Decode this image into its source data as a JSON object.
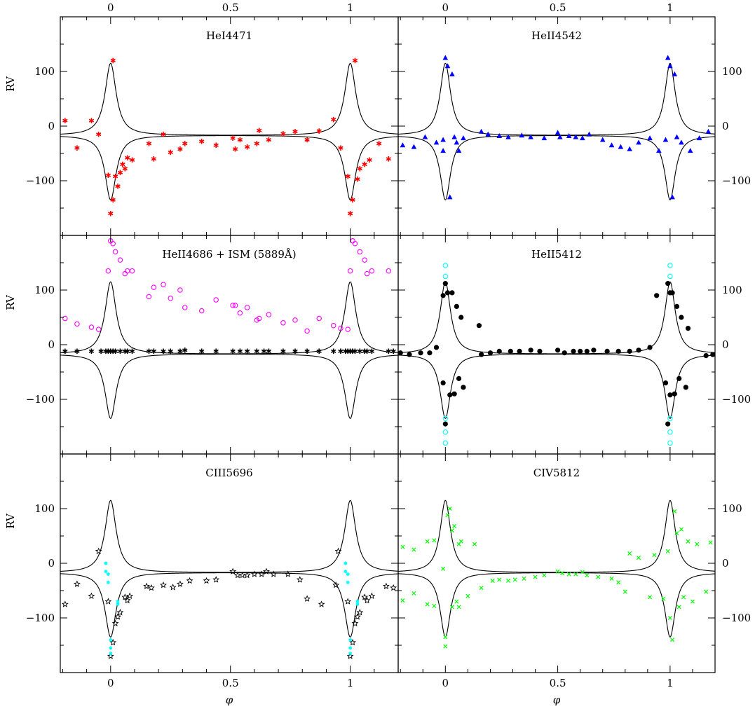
{
  "figure": {
    "xlabel": "φ",
    "ylabel": "RV",
    "x_ticks": [
      "0",
      "0.5",
      "1"
    ],
    "y_ticks": [
      "100",
      "0",
      "−100"
    ]
  },
  "chart_data": [
    {
      "type": "scatter",
      "title": "HeI4471",
      "xlabel": "",
      "ylabel": "RV",
      "xlim": [
        -0.21,
        1.2
      ],
      "ylim": [
        -200,
        200
      ],
      "grid": false,
      "markers": {
        "data": "asterisk"
      },
      "colors": {
        "data": "#ff0000"
      },
      "series": [
        {
          "name": "",
          "x": [
            -0.19,
            -0.14,
            -0.08,
            -0.05,
            -0.01,
            0.0,
            0.01,
            0.01,
            0.02,
            0.03,
            0.04,
            0.05,
            0.06,
            0.07,
            0.09,
            0.16,
            0.18,
            0.22,
            0.25,
            0.29,
            0.31,
            0.38,
            0.44,
            0.51,
            0.52,
            0.54,
            0.57,
            0.61,
            0.62,
            0.66,
            0.72,
            0.77,
            0.82,
            0.87,
            0.93,
            0.96,
            0.99,
            1.0,
            1.01,
            1.02,
            1.03,
            1.04,
            1.06,
            1.08,
            1.12,
            1.16
          ],
          "y": [
            10,
            -40,
            10,
            -15,
            -90,
            -160,
            -135,
            120,
            -92,
            -110,
            -85,
            -70,
            -78,
            -58,
            -62,
            -32,
            -60,
            -15,
            -48,
            -42,
            -32,
            -28,
            -35,
            -22,
            -42,
            -25,
            -38,
            -32,
            -8,
            -25,
            -14,
            -10,
            -25,
            -9,
            12,
            -40,
            -92,
            -160,
            -135,
            120,
            -97,
            -78,
            -70,
            -62,
            -32,
            -60
          ]
        }
      ],
      "model_curves": {
        "period": 1.0,
        "peak": 115,
        "trough": -135,
        "baseline": -17
      }
    },
    {
      "type": "scatter",
      "title": "HeII4542",
      "xlabel": "",
      "ylabel": "RV",
      "xlim": [
        -0.21,
        1.2
      ],
      "ylim": [
        -200,
        200
      ],
      "grid": false,
      "markers": {
        "data": "triangle"
      },
      "colors": {
        "data": "#0000ff"
      },
      "series": [
        {
          "name": "",
          "x": [
            -0.19,
            -0.14,
            -0.09,
            -0.04,
            -0.01,
            -0.01,
            0.0,
            0.01,
            0.02,
            0.03,
            0.04,
            0.05,
            0.06,
            0.08,
            0.16,
            0.19,
            0.24,
            0.28,
            0.34,
            0.38,
            0.44,
            0.5,
            0.51,
            0.55,
            0.58,
            0.61,
            0.64,
            0.7,
            0.74,
            0.78,
            0.82,
            0.86,
            0.91,
            0.95,
            0.98,
            0.99,
            1.0,
            1.01,
            1.02,
            1.03,
            1.05,
            1.09,
            1.13,
            1.17
          ],
          "y": [
            -35,
            -38,
            -20,
            -30,
            -45,
            -25,
            125,
            110,
            -130,
            95,
            -20,
            -30,
            -45,
            -22,
            -10,
            -15,
            -18,
            -20,
            -17,
            -20,
            -22,
            -12,
            -20,
            -18,
            -20,
            -22,
            -15,
            -25,
            -35,
            -38,
            -42,
            -30,
            -22,
            -45,
            -25,
            125,
            110,
            -130,
            95,
            -20,
            -30,
            -45,
            -22,
            -10
          ]
        }
      ],
      "model_curves": {
        "period": 1.0,
        "peak": 115,
        "trough": -135,
        "baseline": -17
      }
    },
    {
      "type": "scatter",
      "title": "HeII4686 + ISM (5889Å)",
      "xlabel": "",
      "ylabel": "RV",
      "xlim": [
        -0.21,
        1.2
      ],
      "ylim": [
        -200,
        200
      ],
      "grid": false,
      "markers": {
        "HeII4686": "open-circle",
        "ISM": "asterisk"
      },
      "colors": {
        "HeII4686": "#ff00ff",
        "ISM": "#000000"
      },
      "series": [
        {
          "name": "",
          "x": [
            -0.19,
            -0.14,
            -0.08,
            -0.05,
            -0.01,
            0.0,
            0.01,
            0.02,
            0.04,
            0.06,
            0.07,
            0.09,
            0.16,
            0.18,
            0.22,
            0.25,
            0.29,
            0.31,
            0.38,
            0.44,
            0.51,
            0.52,
            0.54,
            0.57,
            0.61,
            0.62,
            0.66,
            0.72,
            0.77,
            0.82,
            0.87,
            0.93,
            0.96,
            0.99,
            1.0,
            1.01,
            1.02,
            1.04,
            1.06,
            1.07,
            1.09,
            1.16
          ],
          "y": [
            48,
            38,
            32,
            28,
            135,
            190,
            185,
            170,
            155,
            130,
            135,
            135,
            88,
            105,
            110,
            85,
            100,
            68,
            62,
            82,
            72,
            72,
            58,
            68,
            45,
            48,
            55,
            40,
            45,
            25,
            48,
            35,
            30,
            28,
            135,
            190,
            185,
            170,
            155,
            130,
            135,
            135
          ]
        },
        {
          "name": "",
          "x": [
            -0.19,
            -0.14,
            -0.08,
            -0.04,
            -0.02,
            -0.01,
            0.0,
            0.01,
            0.02,
            0.04,
            0.06,
            0.07,
            0.09,
            0.16,
            0.18,
            0.22,
            0.25,
            0.29,
            0.31,
            0.38,
            0.44,
            0.51,
            0.54,
            0.57,
            0.61,
            0.64,
            0.66,
            0.72,
            0.77,
            0.82,
            0.87,
            0.93,
            0.96,
            0.98,
            0.99,
            1.0,
            1.01,
            1.02,
            1.04,
            1.06,
            1.07,
            1.09,
            1.16,
            1.18
          ],
          "y": [
            -12,
            -12,
            -12,
            -12,
            -12,
            -12,
            -12,
            -12,
            -12,
            -12,
            -12,
            -12,
            -12,
            -12,
            -12,
            -12,
            -12,
            -12,
            -10,
            -12,
            -12,
            -12,
            -12,
            -12,
            -12,
            -12,
            -12,
            -12,
            -12,
            -12,
            -12,
            -12,
            -12,
            -12,
            -12,
            -12,
            -12,
            -12,
            -12,
            -12,
            -12,
            -12,
            -12,
            -12
          ]
        }
      ],
      "model_curves": {
        "period": 1.0,
        "peak": 115,
        "trough": -135,
        "baseline": -17
      }
    },
    {
      "type": "scatter",
      "title": "HeII5412",
      "xlabel": "",
      "ylabel": "RV",
      "xlim": [
        -0.21,
        1.2
      ],
      "ylim": [
        -200,
        200
      ],
      "grid": false,
      "markers": {
        "data": "filled-circle",
        "cyan": "open-circle"
      },
      "colors": {
        "data": "#000000",
        "cyan": "#00ffff"
      },
      "series": [
        {
          "name": "",
          "x": [
            -0.2,
            -0.16,
            -0.11,
            -0.07,
            -0.04,
            -0.01,
            -0.01,
            0.0,
            0.0,
            0.01,
            0.02,
            0.03,
            0.04,
            0.05,
            0.06,
            0.07,
            0.08,
            0.15,
            0.16,
            0.2,
            0.24,
            0.29,
            0.33,
            0.38,
            0.42,
            0.5,
            0.53,
            0.57,
            0.6,
            0.63,
            0.66,
            0.72,
            0.77,
            0.82,
            0.86,
            0.91,
            0.94,
            0.98,
            0.99,
            0.99,
            1.0,
            1.0,
            1.01,
            1.02,
            1.03,
            1.04,
            1.05,
            1.07,
            1.08,
            1.16,
            1.19
          ],
          "y": [
            -15,
            -18,
            -15,
            -15,
            -5,
            90,
            -70,
            112,
            -145,
            95,
            -92,
            95,
            -90,
            70,
            -62,
            50,
            -78,
            35,
            -18,
            -15,
            -12,
            -12,
            -12,
            -10,
            -12,
            -10,
            -15,
            -12,
            -12,
            -12,
            -10,
            -12,
            -12,
            -12,
            -10,
            -5,
            90,
            -70,
            112,
            -145,
            95,
            -92,
            95,
            -90,
            70,
            -62,
            50,
            -78,
            30,
            -20,
            -18
          ]
        },
        {
          "name": "",
          "x": [
            0.0,
            0.0,
            0.0,
            0.0,
            0.0,
            1.0,
            1.0,
            1.0,
            1.0,
            1.0
          ],
          "y": [
            145,
            125,
            -135,
            -160,
            -180,
            145,
            125,
            -135,
            -160,
            -180
          ]
        }
      ],
      "model_curves": {
        "period": 1.0,
        "peak": 115,
        "trough": -135,
        "baseline": -17
      }
    },
    {
      "type": "scatter",
      "title": "CIII5696",
      "xlabel": "φ",
      "ylabel": "RV",
      "xlim": [
        -0.21,
        1.2
      ],
      "ylim": [
        -200,
        200
      ],
      "grid": false,
      "markers": {
        "data": "open-star",
        "cyan": "small-star"
      },
      "colors": {
        "data": "#000000",
        "cyan": "#00ffff"
      },
      "series": [
        {
          "name": "",
          "x": [
            -0.19,
            -0.14,
            -0.08,
            -0.05,
            -0.01,
            0.0,
            0.01,
            0.02,
            0.03,
            0.04,
            0.06,
            0.07,
            0.08,
            0.15,
            0.17,
            0.22,
            0.26,
            0.29,
            0.33,
            0.4,
            0.44,
            0.51,
            0.53,
            0.55,
            0.57,
            0.6,
            0.63,
            0.65,
            0.68,
            0.74,
            0.79,
            0.82,
            0.88,
            0.94,
            0.95,
            0.99,
            1.0,
            1.01,
            1.02,
            1.03,
            1.04,
            1.06,
            1.07,
            1.09,
            1.15,
            1.18
          ],
          "y": [
            -75,
            -38,
            -60,
            22,
            -70,
            -170,
            -145,
            -110,
            -98,
            -90,
            -62,
            -68,
            -60,
            -42,
            -45,
            -40,
            -44,
            -38,
            -32,
            -32,
            -30,
            -15,
            -22,
            -22,
            -22,
            -20,
            -20,
            -15,
            -20,
            -20,
            -30,
            -65,
            -75,
            -40,
            22,
            -70,
            -170,
            -145,
            -110,
            -98,
            -90,
            -62,
            -68,
            -60,
            -42,
            -45
          ]
        },
        {
          "name": "",
          "x": [
            -0.02,
            -0.02,
            -0.01,
            -0.01,
            0.0,
            0.0,
            0.0,
            0.03,
            0.03,
            0.98,
            0.98,
            0.99,
            0.99,
            1.0,
            1.0,
            1.0,
            1.03,
            1.03
          ],
          "y": [
            0,
            -15,
            -20,
            -35,
            -140,
            -155,
            -165,
            -70,
            -75,
            0,
            -15,
            -20,
            -35,
            -140,
            -155,
            -165,
            -70,
            -75
          ]
        }
      ],
      "model_curves": {
        "period": 1.0,
        "peak": 115,
        "trough": -135,
        "baseline": -17
      }
    },
    {
      "type": "scatter",
      "title": "CIV5812",
      "xlabel": "φ",
      "ylabel": "RV",
      "xlim": [
        -0.21,
        1.2
      ],
      "ylim": [
        -200,
        200
      ],
      "grid": false,
      "markers": {
        "data": "cross"
      },
      "colors": {
        "data": "#00ff00"
      },
      "series": [
        {
          "name": "",
          "x": [
            -0.19,
            -0.19,
            -0.14,
            -0.14,
            -0.08,
            -0.08,
            -0.05,
            -0.05,
            -0.01,
            0.0,
            0.0,
            0.01,
            0.02,
            0.03,
            0.03,
            0.04,
            0.05,
            0.06,
            0.06,
            0.07,
            0.1,
            0.13,
            0.16,
            0.21,
            0.24,
            0.28,
            0.31,
            0.35,
            0.4,
            0.44,
            0.5,
            0.52,
            0.55,
            0.58,
            0.61,
            0.63,
            0.68,
            0.74,
            0.77,
            0.8,
            0.82,
            0.86,
            0.91,
            0.93,
            0.97,
            0.99,
            1.0,
            1.01,
            1.02,
            1.03,
            1.04,
            1.05,
            1.06,
            1.08,
            1.1,
            1.12,
            1.16,
            1.18
          ],
          "y": [
            -68,
            30,
            -55,
            25,
            -75,
            40,
            -78,
            42,
            -10,
            -135,
            -152,
            88,
            100,
            60,
            -80,
            68,
            -70,
            35,
            -80,
            40,
            -60,
            35,
            -45,
            -32,
            -30,
            -32,
            -30,
            -28,
            -25,
            -22,
            -15,
            -18,
            -20,
            -20,
            -16,
            -22,
            -25,
            -28,
            -35,
            -52,
            18,
            10,
            -62,
            15,
            -65,
            22,
            -100,
            -140,
            95,
            55,
            -80,
            62,
            -62,
            40,
            -70,
            35,
            -52,
            38
          ]
        }
      ],
      "model_curves": {
        "period": 1.0,
        "peak": 115,
        "trough": -135,
        "baseline": -17
      }
    }
  ]
}
